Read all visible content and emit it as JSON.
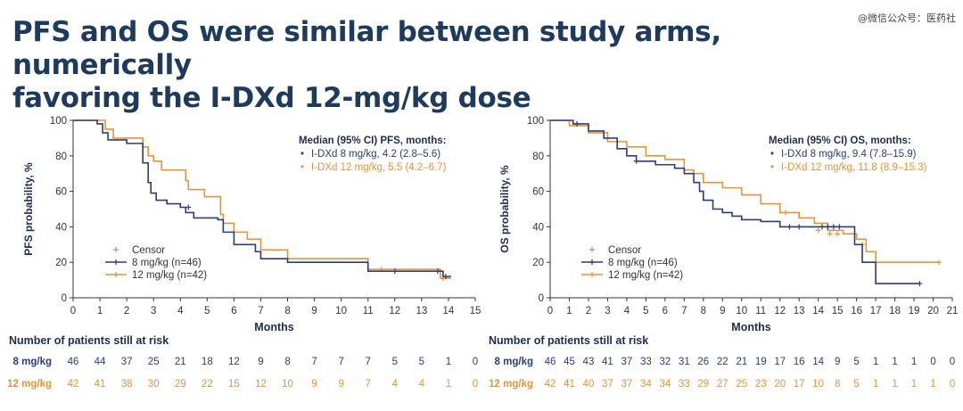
{
  "page": {
    "title_line1": "PFS and OS were similar between study arms, numerically",
    "title_line2": "favoring the I-DXd 12-mg/kg dose",
    "watermark": "@微信公众号：医药社"
  },
  "colors": {
    "arm_8": "#2b3c7a",
    "arm_12": "#e8923a",
    "text_dark": "#1f2d4d",
    "axis": "#333333"
  },
  "chart_data": [
    {
      "type": "line",
      "name": "pfs",
      "xlabel": "Months",
      "ylabel": "PFS probability, %",
      "xlim": [
        0,
        15
      ],
      "ylim": [
        0,
        100
      ],
      "x_ticks": [
        "0",
        "1",
        "2",
        "3",
        "4",
        "5",
        "6",
        "7",
        "8",
        "9",
        "10",
        "11",
        "12",
        "13",
        "14",
        "15"
      ],
      "y_ticks": [
        "0",
        "20",
        "40",
        "60",
        "80",
        "100"
      ],
      "median_title": "Median (95% CI) PFS, months:",
      "median_lines": [
        "I-DXd 8 mg/kg, 4.2 (2.8–5.6)",
        "I-DXd 12 mg/kg, 5.5 (4.2–6.7)"
      ],
      "legend": {
        "censor": "Censor",
        "arm_8": "8 mg/kg (n=46)",
        "arm_12": "12 mg/kg (n=42)"
      },
      "series": [
        {
          "name": "8 mg/kg",
          "x": [
            0,
            0.9,
            1.1,
            1.3,
            2.0,
            2.6,
            2.8,
            2.9,
            3.1,
            3.5,
            4.0,
            4.2,
            4.5,
            5.4,
            5.6,
            6.0,
            6.8,
            7.0,
            8.0,
            11.0,
            12.0,
            13.5,
            13.8,
            14.1
          ],
          "y": [
            100,
            98,
            93,
            89,
            87,
            76,
            65,
            59,
            55,
            53,
            51,
            48,
            45,
            44,
            37,
            30,
            26,
            22,
            20,
            15,
            15,
            15,
            12,
            12
          ],
          "censor_x": [
            4.3,
            12.0,
            13.6,
            13.9
          ],
          "censor_y": [
            51,
            15,
            15,
            12
          ]
        },
        {
          "name": "12 mg/kg",
          "x": [
            0,
            1.2,
            1.5,
            2.6,
            2.8,
            3.0,
            3.3,
            4.2,
            4.3,
            4.9,
            5.5,
            5.6,
            6.0,
            6.5,
            7.0,
            8.0,
            11.0,
            13.2,
            13.7,
            14.1
          ],
          "y": [
            100,
            95,
            90,
            85,
            80,
            77,
            72,
            66,
            61,
            57,
            47,
            42,
            37,
            33,
            27,
            22,
            16,
            16,
            11,
            11
          ],
          "censor_x": [
            11.5,
            13.8
          ],
          "censor_y": [
            16,
            11
          ]
        }
      ],
      "risk_title": "Number of patients still at risk",
      "risk_rows": [
        {
          "label": "8 mg/kg",
          "values": [
            "46",
            "44",
            "37",
            "25",
            "21",
            "18",
            "12",
            "9",
            "8",
            "7",
            "7",
            "7",
            "5",
            "5",
            "1",
            "0"
          ]
        },
        {
          "label": "12 mg/kg",
          "values": [
            "42",
            "41",
            "38",
            "30",
            "29",
            "22",
            "15",
            "12",
            "10",
            "9",
            "9",
            "7",
            "4",
            "4",
            "1",
            "0"
          ]
        }
      ]
    },
    {
      "type": "line",
      "name": "os",
      "xlabel": "Months",
      "ylabel": "OS probability, %",
      "xlim": [
        0,
        21
      ],
      "ylim": [
        0,
        100
      ],
      "x_ticks": [
        "0",
        "1",
        "2",
        "3",
        "4",
        "5",
        "6",
        "7",
        "8",
        "9",
        "10",
        "11",
        "12",
        "13",
        "14",
        "15",
        "16",
        "17",
        "18",
        "19",
        "20",
        "21"
      ],
      "y_ticks": [
        "0",
        "20",
        "40",
        "60",
        "80",
        "100"
      ],
      "median_title": "Median (95% CI) OS, months:",
      "median_lines": [
        "I-DXd 8 mg/kg, 9.4 (7.8–15.9)",
        "I-DXd 12 mg/kg, 11.8 (8.9–15.3)"
      ],
      "legend": {
        "censor": "Censor",
        "arm_8": "8 mg/kg (n=46)",
        "arm_12": "12 mg/kg (n=42)"
      },
      "series": [
        {
          "name": "8 mg/kg",
          "x": [
            0,
            1.2,
            2.0,
            2.8,
            3.5,
            4.0,
            4.5,
            5.5,
            6.5,
            7.0,
            7.5,
            7.8,
            8.0,
            8.5,
            9.0,
            9.5,
            10.0,
            11.0,
            12.0,
            14.0,
            15.2,
            15.9,
            16.3,
            17.0,
            19.3
          ],
          "y": [
            100,
            98,
            94,
            90,
            84,
            80,
            77,
            75,
            73,
            70,
            65,
            60,
            55,
            50,
            48,
            46,
            44,
            43,
            40,
            40,
            40,
            30,
            20,
            8,
            8
          ],
          "censor_x": [
            1.4,
            4.5,
            12.5,
            13.0,
            14.2,
            14.5,
            14.8,
            15.1,
            19.3
          ],
          "censor_y": [
            98,
            77,
            40,
            40,
            40,
            40,
            40,
            40,
            8
          ]
        },
        {
          "name": "12 mg/kg",
          "x": [
            0,
            1.0,
            2.0,
            3.0,
            4.0,
            5.0,
            6.0,
            7.0,
            7.5,
            8.0,
            9.0,
            10.0,
            11.0,
            12.0,
            13.0,
            13.8,
            14.5,
            15.3,
            16.0,
            16.5,
            17.0,
            20.3
          ],
          "y": [
            100,
            97,
            93,
            88,
            85,
            80,
            78,
            72,
            70,
            65,
            62,
            58,
            53,
            48,
            45,
            42,
            38,
            36,
            33,
            26,
            20,
            20
          ],
          "censor_x": [
            12.3,
            14.0,
            14.6,
            15.0,
            16.3,
            20.3
          ],
          "censor_y": [
            48,
            38,
            36,
            36,
            30,
            20
          ]
        }
      ],
      "risk_title": "Number of patients still at risk",
      "risk_rows": [
        {
          "label": "8 mg/kg",
          "values": [
            "46",
            "45",
            "43",
            "41",
            "37",
            "33",
            "32",
            "31",
            "26",
            "22",
            "21",
            "19",
            "17",
            "16",
            "14",
            "9",
            "5",
            "1",
            "1",
            "1",
            "0",
            "0"
          ]
        },
        {
          "label": "12 mg/kg",
          "values": [
            "42",
            "41",
            "40",
            "37",
            "37",
            "34",
            "34",
            "33",
            "29",
            "27",
            "25",
            "23",
            "20",
            "17",
            "10",
            "8",
            "5",
            "1",
            "1",
            "1",
            "1",
            "0"
          ]
        }
      ]
    }
  ]
}
